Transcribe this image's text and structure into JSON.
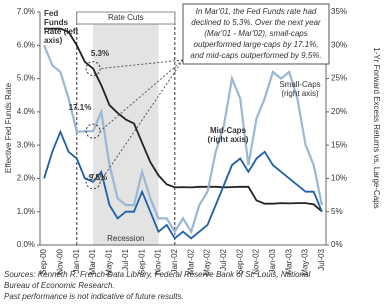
{
  "chart_data": {
    "type": "line",
    "ylabel": "Effective Fed Funds Rate",
    "y2label": "1-Yr Forward Excess Returns vs. Large-Caps",
    "categories": [
      "Sep-00",
      null,
      "Nov-00",
      null,
      "Jan-01",
      null,
      "Mar-01",
      null,
      "May-01",
      null,
      "Jul-01",
      null,
      "Sep-01",
      null,
      "Nov-01",
      null,
      "Jan-02",
      null,
      "Mar-02",
      null,
      "May-02",
      null,
      "Jul-02",
      null,
      "Sep-02",
      null,
      "Nov-02",
      null,
      "Jan-03",
      null,
      "Mar-03",
      null,
      "May-03",
      null,
      "Jul-03"
    ],
    "ylim": [
      0,
      7
    ],
    "yticks": [
      {
        "value": 0,
        "label": "0.0%"
      },
      {
        "value": 1,
        "label": "1.0%"
      },
      {
        "value": 2,
        "label": "2.0%"
      },
      {
        "value": 3,
        "label": "3.0%"
      },
      {
        "value": 4,
        "label": "4.0%"
      },
      {
        "value": 5,
        "label": "5.0%"
      },
      {
        "value": 6,
        "label": "6.0%"
      },
      {
        "value": 7,
        "label": "7.0%"
      }
    ],
    "y2lim": [
      0,
      35
    ],
    "y2ticks": [
      {
        "value": 0,
        "label": "0%"
      },
      {
        "value": 5,
        "label": "5%"
      },
      {
        "value": 10,
        "label": "10%"
      },
      {
        "value": 15,
        "label": "15%"
      },
      {
        "value": 20,
        "label": "20%"
      },
      {
        "value": 25,
        "label": "25%"
      },
      {
        "value": 30,
        "label": "30%"
      },
      {
        "value": 35,
        "label": "35%"
      }
    ],
    "series": [
      {
        "name": "Fed Funds Rate (left axis)",
        "color": "#222222",
        "axis": "y",
        "values": [
          6.5,
          6.5,
          6.5,
          6.4,
          6.0,
          5.5,
          5.3,
          4.8,
          4.2,
          3.97,
          3.77,
          3.65,
          3.07,
          2.49,
          2.09,
          1.82,
          1.73,
          1.74,
          1.73,
          1.75,
          1.75,
          1.75,
          1.73,
          1.74,
          1.75,
          1.75,
          1.34,
          1.24,
          1.24,
          1.26,
          1.25,
          1.26,
          1.26,
          1.22,
          1.01
        ]
      },
      {
        "name": "Small-Caps (right axis)",
        "color": "#9bb7d4",
        "axis": "y2",
        "values": [
          30,
          27,
          26,
          22,
          17,
          17.1,
          17.1,
          20,
          12,
          7,
          6,
          6,
          11,
          7,
          4,
          4,
          2,
          4,
          2,
          6,
          8,
          14,
          18,
          25,
          22,
          12,
          19,
          22,
          26,
          25,
          26,
          22,
          15,
          12,
          6
        ]
      },
      {
        "name": "Mid-Caps (right axis)",
        "color": "#1f5fa6",
        "axis": "y2",
        "values": [
          10,
          14,
          17,
          14,
          13,
          10,
          9.5,
          11,
          6,
          4,
          5,
          5,
          8,
          5,
          2,
          3,
          1,
          2,
          1,
          2,
          3,
          6,
          9,
          12,
          13,
          11,
          13,
          14,
          12,
          11,
          10,
          9,
          8,
          8,
          5
        ]
      }
    ],
    "legend_lines": [
      [
        "Fed",
        "Funds",
        "Rate (left",
        "axis)"
      ],
      [
        "Small-Caps",
        "(right axis)"
      ],
      [
        "Mid-Caps",
        "(right axis)"
      ]
    ],
    "annotations": {
      "fed": "5.3%",
      "small": "17.1%",
      "mid": "9.5%",
      "rate_cuts": "Rate Cuts",
      "recession": "Recession"
    },
    "callout": [
      "In Mar'01, the Fed Funds rate had",
      "declined to 5.3%. Over the next year",
      "(Mar'01 - Mar'02), small-caps",
      "outperformed large-caps by 17.1%,",
      "and mid-caps outperformed by 9.5%."
    ],
    "footnotes": [
      "Sources: Kenneth R. French Data Library, Federal Reserve Bank of St. Louis, National",
      "Bureau of Economic Research.",
      "Past performance is not indicative of future results."
    ]
  }
}
